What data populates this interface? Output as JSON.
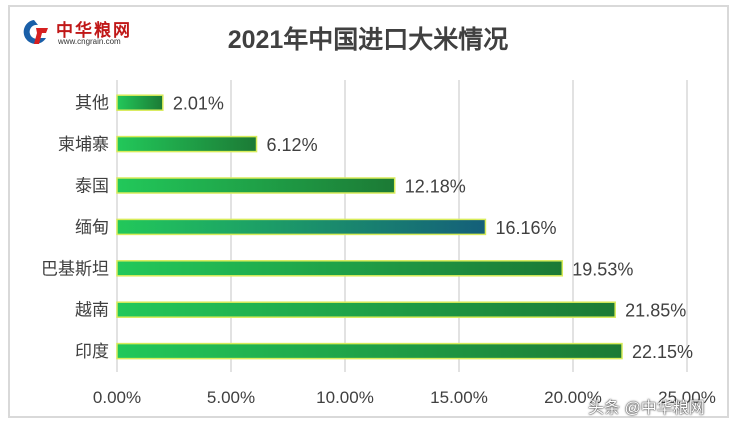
{
  "logo": {
    "name": "中华粮网",
    "url_text": "www.cngrain.com"
  },
  "watermark": "头条 @中华粮网",
  "chart_data": {
    "type": "bar",
    "orientation": "horizontal",
    "title": "2021年中国进口大米情况",
    "categories": [
      "其他",
      "柬埔寨",
      "泰国",
      "缅甸",
      "巴基斯坦",
      "越南",
      "印度"
    ],
    "values": [
      2.01,
      6.12,
      12.18,
      16.16,
      19.53,
      21.85,
      22.15
    ],
    "data_labels": [
      "2.01%",
      "6.12%",
      "12.18%",
      "16.16%",
      "19.53%",
      "21.85%",
      "22.15%"
    ],
    "xlim": [
      0,
      25
    ],
    "x_ticks": [
      "0.00%",
      "5.00%",
      "10.00%",
      "15.00%",
      "20.00%",
      "25.00%"
    ],
    "grid": true,
    "colors": {
      "bar_start": "#22c85a",
      "bar_end": "#1c7a35",
      "bar_end_myanmar": "#145f7a",
      "bar_border": "#d8ec5a",
      "grid": "#d9d9d9",
      "text": "#404040"
    }
  }
}
